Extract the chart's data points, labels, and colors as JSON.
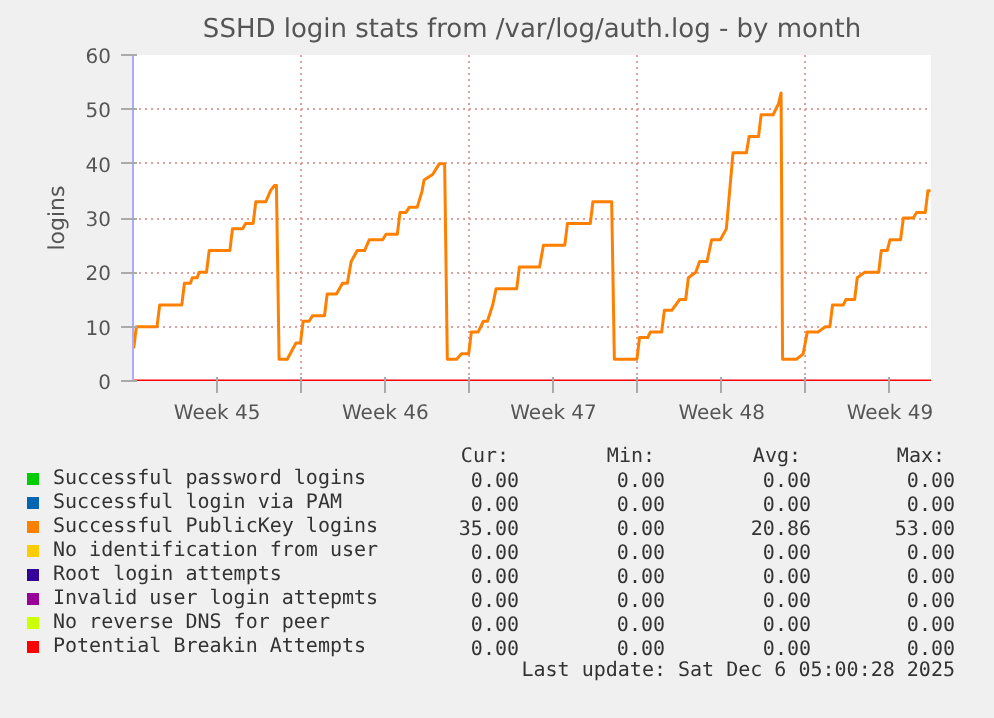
{
  "chart_data": {
    "type": "line",
    "title": "SSHD login stats from /var/log/auth.log - by month",
    "ylabel": "logins",
    "x": [
      "2025-11-03T00:45",
      "2025-11-03T03:20",
      "2025-11-04T00:00",
      "2025-11-04T02:40",
      "2025-11-05T00:45",
      "2025-11-05T03:20",
      "2025-11-05T09:20",
      "2025-11-05T11:15",
      "2025-11-05T16:05",
      "2025-11-05T18:00",
      "2025-11-06T01:25",
      "2025-11-06T04:05",
      "2025-11-07T00:45",
      "2025-11-07T03:20",
      "2025-11-07T13:25",
      "2025-11-07T16:35",
      "2025-11-08T00:00",
      "2025-11-08T02:40",
      "2025-11-08T12:40",
      "2025-11-08T17:15",
      "2025-11-08T21:20",
      "2025-11-08T23:15",
      "2025-11-09T01:55",
      "2025-11-09T10:05",
      "2025-11-09T18:45",
      "2025-11-09T23:15",
      "2025-11-10T01:55",
      "2025-11-10T07:55",
      "2025-11-10T11:15",
      "2025-11-10T23:15",
      "2025-11-11T01:55",
      "2025-11-11T11:15",
      "2025-11-11T17:15",
      "2025-11-11T22:05",
      "2025-11-12T01:55",
      "2025-11-12T07:55",
      "2025-11-12T15:20",
      "2025-11-12T19:55",
      "2025-11-13T09:20",
      "2025-11-13T12:40",
      "2025-11-14T00:00",
      "2025-11-14T02:40",
      "2025-11-14T08:40",
      "2025-11-14T12:00",
      "2025-11-14T19:55",
      "2025-11-15T00:45",
      "2025-11-15T02:40",
      "2025-11-15T11:15",
      "2025-11-15T18:00",
      "2025-11-15T23:15",
      "2025-11-16T01:55",
      "2025-11-16T11:15",
      "2025-11-16T16:05",
      "2025-11-16T23:15",
      "2025-11-17T01:55",
      "2025-11-17T08:40",
      "2025-11-17T13:55",
      "2025-11-17T18:00",
      "2025-11-17T23:15",
      "2025-11-18T02:40",
      "2025-11-18T23:15",
      "2025-11-19T01:55",
      "2025-11-19T22:05",
      "2025-11-20T01:55",
      "2025-11-20T23:15",
      "2025-11-21T01:55",
      "2025-11-22T00:45",
      "2025-11-22T03:20",
      "2025-11-22T22:05",
      "2025-11-23T00:45",
      "2025-11-23T23:15",
      "2025-11-24T01:55",
      "2025-11-24T10:05",
      "2025-11-24T12:40",
      "2025-11-25T00:00",
      "2025-11-25T02:40",
      "2025-11-25T10:05",
      "2025-11-25T18:00",
      "2025-11-26T00:00",
      "2025-11-26T02:40",
      "2025-11-26T10:05",
      "2025-11-26T13:55",
      "2025-11-26T21:20",
      "2025-11-27T01:55",
      "2025-11-27T10:35",
      "2025-11-27T16:35",
      "2025-11-27T23:15",
      "2025-11-28T12:40",
      "2025-11-28T15:20",
      "2025-11-29T00:45",
      "2025-11-29T03:20",
      "2025-11-29T15:20",
      "2025-11-29T20:40",
      "2025-11-29T23:15",
      "2025-11-30T00:45",
      "2025-11-30T14:40",
      "2025-11-30T21:20",
      "2025-12-01T01:25",
      "2025-12-01T12:00",
      "2025-12-01T19:25",
      "2025-12-02T00:00",
      "2025-12-02T02:40",
      "2025-12-02T13:25",
      "2025-12-02T16:05",
      "2025-12-03T00:45",
      "2025-12-03T03:20",
      "2025-12-03T10:35",
      "2025-12-04T00:45",
      "2025-12-04T03:20",
      "2025-12-04T09:20",
      "2025-12-04T12:00",
      "2025-12-04T22:35",
      "2025-12-05T01:25",
      "2025-12-05T11:15",
      "2025-12-05T14:40",
      "2025-12-05T23:15",
      "2025-12-06T01:55",
      "2025-12-06T04:35"
    ],
    "series": [
      {
        "name": "Successful password logins",
        "color": "#00cc00",
        "values": [
          null,
          null,
          null,
          null,
          null,
          null,
          null,
          null,
          null,
          null,
          null,
          null,
          null,
          null,
          null,
          null,
          null,
          null,
          null,
          null,
          null,
          null,
          null,
          null,
          null,
          null,
          null,
          null,
          null,
          null,
          null,
          null,
          null,
          null,
          null,
          null,
          null,
          null,
          null,
          null,
          null,
          null,
          null,
          null,
          null,
          null,
          null,
          null,
          null,
          null,
          null,
          null,
          null,
          null,
          null,
          null,
          null,
          null,
          null,
          null,
          null,
          null,
          null,
          null,
          null,
          null,
          null,
          null,
          null,
          null,
          null,
          null,
          null,
          null,
          null,
          null,
          null,
          null,
          null,
          null,
          null,
          null,
          null,
          null,
          null,
          null,
          null,
          null,
          null,
          null,
          null,
          null,
          null,
          null,
          null,
          null,
          null,
          null,
          null,
          null,
          null,
          null,
          null,
          null,
          null,
          null,
          null,
          null,
          null,
          null,
          null,
          null,
          null,
          null,
          null,
          null,
          null,
          null
        ]
      },
      {
        "name": "Successful login via PAM",
        "color": "#0066b3",
        "values": [
          null,
          null,
          null,
          null,
          null,
          null,
          null,
          null,
          null,
          null,
          null,
          null,
          null,
          null,
          null,
          null,
          null,
          null,
          null,
          null,
          null,
          null,
          null,
          null,
          null,
          null,
          null,
          null,
          null,
          null,
          null,
          null,
          null,
          null,
          null,
          null,
          null,
          null,
          null,
          null,
          null,
          null,
          null,
          null,
          null,
          null,
          null,
          null,
          null,
          null,
          null,
          null,
          null,
          null,
          null,
          null,
          null,
          null,
          null,
          null,
          null,
          null,
          null,
          null,
          null,
          null,
          null,
          null,
          null,
          null,
          null,
          null,
          null,
          null,
          null,
          null,
          null,
          null,
          null,
          null,
          null,
          null,
          null,
          null,
          null,
          null,
          null,
          null,
          null,
          null,
          null,
          null,
          null,
          null,
          null,
          null,
          null,
          null,
          null,
          null,
          null,
          null,
          null,
          null,
          null,
          null,
          null,
          null,
          null,
          null,
          null,
          null,
          null,
          null,
          null,
          null,
          null,
          null
        ]
      },
      {
        "name": "Successful PublicKey logins",
        "color": "#ff8000",
        "values": [
          6,
          10,
          10,
          14,
          14,
          18,
          18,
          19,
          19,
          20,
          20,
          24,
          24,
          28,
          28,
          29,
          29,
          33,
          33,
          35,
          36,
          36,
          4,
          4,
          7,
          7,
          11,
          11,
          12,
          12,
          16,
          16,
          18,
          18,
          22,
          24,
          24,
          26,
          26,
          27,
          27,
          31,
          31,
          32,
          32,
          35,
          37,
          38,
          40,
          40,
          4,
          4,
          5,
          5,
          9,
          9,
          11,
          11,
          14,
          17,
          17,
          21,
          21,
          25,
          25,
          29,
          29,
          33,
          33,
          4,
          4,
          8,
          8,
          9,
          9,
          13,
          13,
          15,
          15,
          19,
          20,
          22,
          22,
          26,
          26,
          28,
          42,
          42,
          45,
          45,
          49,
          49,
          51,
          53,
          4,
          4,
          5,
          9,
          9,
          10,
          10,
          14,
          14,
          15,
          15,
          19,
          20,
          20,
          24,
          24,
          26,
          26,
          30,
          30,
          31,
          31,
          35,
          35
        ]
      },
      {
        "name": "No identification from user",
        "color": "#ffcc00",
        "values": [
          null,
          null,
          null,
          null,
          null,
          null,
          null,
          null,
          null,
          null,
          null,
          null,
          null,
          null,
          null,
          null,
          null,
          null,
          null,
          null,
          null,
          null,
          null,
          null,
          null,
          null,
          null,
          null,
          null,
          null,
          null,
          null,
          null,
          null,
          null,
          null,
          null,
          null,
          null,
          null,
          null,
          null,
          null,
          null,
          null,
          null,
          null,
          null,
          null,
          null,
          null,
          null,
          null,
          null,
          null,
          null,
          null,
          null,
          null,
          null,
          null,
          null,
          null,
          null,
          null,
          null,
          null,
          null,
          null,
          null,
          null,
          null,
          null,
          null,
          null,
          null,
          null,
          null,
          null,
          null,
          null,
          null,
          null,
          null,
          null,
          null,
          null,
          null,
          null,
          null,
          null,
          null,
          null,
          null,
          null,
          null,
          null,
          null,
          null,
          null,
          null,
          null,
          null,
          null,
          null,
          null,
          null,
          null,
          null,
          null,
          null,
          null,
          null,
          null,
          null,
          null,
          null,
          null
        ]
      },
      {
        "name": "Root login attempts",
        "color": "#330099",
        "values": [
          null,
          null,
          null,
          null,
          null,
          null,
          null,
          null,
          null,
          null,
          null,
          null,
          null,
          null,
          null,
          null,
          null,
          null,
          null,
          null,
          null,
          null,
          null,
          null,
          null,
          null,
          null,
          null,
          null,
          null,
          null,
          null,
          null,
          null,
          null,
          null,
          null,
          null,
          null,
          null,
          null,
          null,
          null,
          null,
          null,
          null,
          null,
          null,
          null,
          null,
          null,
          null,
          null,
          null,
          null,
          null,
          null,
          null,
          null,
          null,
          null,
          null,
          null,
          null,
          null,
          null,
          null,
          null,
          null,
          null,
          null,
          null,
          null,
          null,
          null,
          null,
          null,
          null,
          null,
          null,
          null,
          null,
          null,
          null,
          null,
          null,
          null,
          null,
          null,
          null,
          null,
          null,
          null,
          null,
          null,
          null,
          null,
          null,
          null,
          null,
          null,
          null,
          null,
          null,
          null,
          null,
          null,
          null,
          null,
          null,
          null,
          null,
          null,
          null,
          null,
          null,
          null,
          null
        ]
      },
      {
        "name": "Invalid user login attepmts",
        "color": "#990099",
        "values": [
          null,
          null,
          null,
          null,
          null,
          null,
          null,
          null,
          null,
          null,
          null,
          null,
          null,
          null,
          null,
          null,
          null,
          null,
          null,
          null,
          null,
          null,
          null,
          null,
          null,
          null,
          null,
          null,
          null,
          null,
          null,
          null,
          null,
          null,
          null,
          null,
          null,
          null,
          null,
          null,
          null,
          null,
          null,
          null,
          null,
          null,
          null,
          null,
          null,
          null,
          null,
          null,
          null,
          null,
          null,
          null,
          null,
          null,
          null,
          null,
          null,
          null,
          null,
          null,
          null,
          null,
          null,
          null,
          null,
          null,
          null,
          null,
          null,
          null,
          null,
          null,
          null,
          null,
          null,
          null,
          null,
          null,
          null,
          null,
          null,
          null,
          null,
          null,
          null,
          null,
          null,
          null,
          null,
          null,
          null,
          null,
          null,
          null,
          null,
          null,
          null,
          null,
          null,
          null,
          null,
          null,
          null,
          null,
          null,
          null,
          null,
          null,
          null,
          null,
          null,
          null,
          null,
          null
        ]
      },
      {
        "name": "No reverse DNS for peer",
        "color": "#ccff00",
        "values": [
          null,
          null,
          null,
          null,
          null,
          null,
          null,
          null,
          null,
          null,
          null,
          null,
          null,
          null,
          null,
          null,
          null,
          null,
          null,
          null,
          null,
          null,
          null,
          null,
          null,
          null,
          null,
          null,
          null,
          null,
          null,
          null,
          null,
          null,
          null,
          null,
          null,
          null,
          null,
          null,
          null,
          null,
          null,
          null,
          null,
          null,
          null,
          null,
          null,
          null,
          null,
          null,
          null,
          null,
          null,
          null,
          null,
          null,
          null,
          null,
          null,
          null,
          null,
          null,
          null,
          null,
          null,
          null,
          null,
          null,
          null,
          null,
          null,
          null,
          null,
          null,
          null,
          null,
          null,
          null,
          null,
          null,
          null,
          null,
          null,
          null,
          null,
          null,
          null,
          null,
          null,
          null,
          null,
          null,
          null,
          null,
          null,
          null,
          null,
          null,
          null,
          null,
          null,
          null,
          null,
          null,
          null,
          null,
          null,
          null,
          null,
          null,
          null,
          null,
          null,
          null,
          null,
          null
        ]
      },
      {
        "name": "Potential Breakin Attempts",
        "color": "#ff0000",
        "x": [
          "2025-11-03T00:00",
          "2025-12-06T05:00"
        ],
        "values": [
          0,
          0
        ]
      }
    ],
    "xlim": [
      "2025-11-03T00:00",
      "2025-12-06T05:00"
    ],
    "xticks": [
      {
        "value": "2025-11-06T12:00",
        "label": "Week 45"
      },
      {
        "value": "2025-11-10T00:00",
        "label": null
      },
      {
        "value": "2025-11-13T12:00",
        "label": "Week 46"
      },
      {
        "value": "2025-11-17T00:00",
        "label": null
      },
      {
        "value": "2025-11-20T12:00",
        "label": "Week 47"
      },
      {
        "value": "2025-11-24T00:00",
        "label": null
      },
      {
        "value": "2025-11-27T12:00",
        "label": "Week 48"
      },
      {
        "value": "2025-12-01T00:00",
        "label": null
      },
      {
        "value": "2025-12-04T12:00",
        "label": "Week 49"
      }
    ],
    "ylim": [
      0,
      60
    ],
    "yticks": [
      0,
      10,
      20,
      30,
      40,
      50,
      60
    ],
    "grid": true,
    "legend": "bottom",
    "annotations": [
      "Cur:",
      "Min:",
      "Avg:",
      "Max:",
      "0.00",
      "0.00",
      "0.00",
      "0.00",
      "0.00",
      "0.00",
      "0.00",
      "0.00",
      "35.00",
      "0.00",
      "20.86",
      "53.00",
      "0.00",
      "0.00",
      "0.00",
      "0.00",
      "0.00",
      "0.00",
      "0.00",
      "0.00",
      "0.00",
      "0.00",
      "0.00",
      "0.00",
      "0.00",
      "0.00",
      "0.00",
      "0.00",
      "0.00",
      "0.00",
      "0.00",
      "0.00",
      "Last update: Sat Dec  6 05:00:28 2025"
    ]
  }
}
